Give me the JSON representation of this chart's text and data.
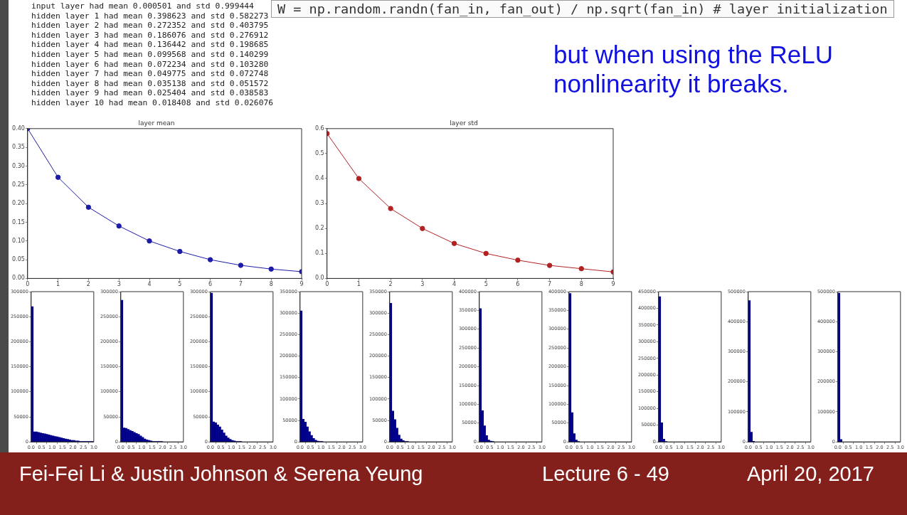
{
  "chart_data": [
    {
      "type": "other",
      "annotations": [
        "input layer had mean 0.000501 and std 0.999444",
        "hidden layer 1 had mean 0.398623 and std 0.582273",
        "hidden layer 2 had mean 0.272352 and std 0.403795",
        "hidden layer 3 had mean 0.186076 and std 0.276912",
        "hidden layer 4 had mean 0.136442 and std 0.198685",
        "hidden layer 5 had mean 0.099568 and std 0.140299",
        "hidden layer 6 had mean 0.072234 and std 0.103280",
        "hidden layer 7 had mean 0.049775 and std 0.072748",
        "hidden layer 8 had mean 0.035138 and std 0.051572",
        "hidden layer 9 had mean 0.025404 and std 0.038583",
        "hidden layer 10 had mean 0.018408 and std 0.026076",
        "W = np.random.randn(fan_in, fan_out) / np.sqrt(fan_in) # layer initialization",
        "but when using the ReLU nonlinearity it breaks.",
        "Fei-Fei Li & Justin Johnson & Serena Yeung",
        "Lecture 6 - 49",
        "April 20, 2017"
      ]
    },
    {
      "type": "line",
      "title": "layer mean",
      "x": [
        0,
        1,
        2,
        3,
        4,
        5,
        6,
        7,
        8,
        9
      ],
      "values": [
        0.4,
        0.27,
        0.19,
        0.14,
        0.1,
        0.072,
        0.05,
        0.035,
        0.025,
        0.018
      ],
      "color": "#1c1ca8",
      "marker": "circle",
      "xlim": [
        0,
        9
      ],
      "xticks": [
        0,
        1,
        2,
        3,
        4,
        5,
        6,
        7,
        8,
        9
      ],
      "ylim": [
        0,
        0.4
      ],
      "yticks": [
        {
          "value": 0,
          "label": "0.00"
        },
        {
          "value": 0.05,
          "label": "0.05"
        },
        {
          "value": 0.1,
          "label": "0.10"
        },
        {
          "value": 0.15,
          "label": "0.15"
        },
        {
          "value": 0.2,
          "label": "0.20"
        },
        {
          "value": 0.25,
          "label": "0.25"
        },
        {
          "value": 0.3,
          "label": "0.30"
        },
        {
          "value": 0.35,
          "label": "0.35"
        },
        {
          "value": 0.4,
          "label": "0.40"
        }
      ]
    },
    {
      "type": "line",
      "title": "layer std",
      "x": [
        0,
        1,
        2,
        3,
        4,
        5,
        6,
        7,
        8,
        9
      ],
      "values": [
        0.58,
        0.4,
        0.28,
        0.2,
        0.14,
        0.1,
        0.073,
        0.052,
        0.039,
        0.026
      ],
      "color": "#b22222",
      "marker": "circle",
      "xlim": [
        0,
        9
      ],
      "xticks": [
        0,
        1,
        2,
        3,
        4,
        5,
        6,
        7,
        8,
        9
      ],
      "ylim": [
        0,
        0.6
      ],
      "yticks": [
        {
          "value": 0,
          "label": "0.0"
        },
        {
          "value": 0.1,
          "label": "0.1"
        },
        {
          "value": 0.2,
          "label": "0.2"
        },
        {
          "value": 0.3,
          "label": "0.3"
        },
        {
          "value": 0.4,
          "label": "0.4"
        },
        {
          "value": 0.5,
          "label": "0.5"
        },
        {
          "value": 0.6,
          "label": "0.6"
        }
      ]
    },
    {
      "type": "histogram",
      "bins": [
        0,
        0.1,
        0.2,
        0.3,
        0.4,
        0.5,
        0.6,
        0.7,
        0.8,
        0.9,
        1.0,
        1.1,
        1.2,
        1.3,
        1.4,
        1.5,
        1.6,
        1.7,
        1.8,
        1.9,
        2.0,
        2.1,
        2.2,
        2.3,
        2.4,
        2.5,
        2.6,
        2.7,
        2.8,
        2.9,
        3.0
      ],
      "values": [
        270000,
        20000,
        20000,
        19000,
        18000,
        17000,
        16000,
        15000,
        14000,
        13000,
        12000,
        11000,
        10000,
        9000,
        8000,
        7000,
        6000,
        5000,
        4000,
        3000,
        3000,
        2000,
        2000,
        1000,
        1000,
        1000,
        1000,
        1000,
        1000,
        1000
      ],
      "color": "#00008b",
      "xlim": [
        0,
        3
      ],
      "xticks": [
        {
          "value": 0,
          "label": "0.0"
        },
        {
          "value": 0.5,
          "label": "0.5"
        },
        {
          "value": 1,
          "label": "1.0"
        },
        {
          "value": 1.5,
          "label": "1.5"
        },
        {
          "value": 2,
          "label": "2.0"
        },
        {
          "value": 2.5,
          "label": "2.5"
        },
        {
          "value": 3,
          "label": "3.0"
        }
      ],
      "ylim": [
        0,
        300000
      ],
      "yticks": [
        0,
        50000,
        100000,
        150000,
        200000,
        250000,
        300000
      ]
    },
    {
      "type": "histogram",
      "bins": [
        0,
        0.1,
        0.2,
        0.3,
        0.4,
        0.5,
        0.6,
        0.7,
        0.8,
        0.9,
        1.0,
        1.1,
        1.2,
        1.3,
        1.4,
        1.5,
        1.6,
        1.7,
        1.8,
        1.9,
        2.0
      ],
      "values": [
        283000,
        28000,
        27000,
        25000,
        23000,
        21000,
        19000,
        17000,
        15000,
        12000,
        9000,
        6000,
        4000,
        3000,
        2000,
        1000,
        1000,
        1000,
        1000,
        1000
      ],
      "color": "#00008b",
      "xlim": [
        0,
        3
      ],
      "xticks": [
        {
          "value": 0,
          "label": "0.0"
        },
        {
          "value": 0.5,
          "label": "0.5"
        },
        {
          "value": 1,
          "label": "1.0"
        },
        {
          "value": 1.5,
          "label": "1.5"
        },
        {
          "value": 2,
          "label": "2.0"
        },
        {
          "value": 2.5,
          "label": "2.5"
        },
        {
          "value": 3,
          "label": "3.0"
        }
      ],
      "ylim": [
        0,
        300000
      ],
      "yticks": [
        0,
        50000,
        100000,
        150000,
        200000,
        250000,
        300000
      ]
    },
    {
      "type": "histogram",
      "bins": [
        0,
        0.1,
        0.2,
        0.3,
        0.4,
        0.5,
        0.6,
        0.7,
        0.8,
        0.9,
        1.0,
        1.1,
        1.2,
        1.3,
        1.4,
        1.5
      ],
      "values": [
        297000,
        40000,
        38000,
        34000,
        30000,
        24000,
        18000,
        12000,
        8000,
        5000,
        3000,
        2000,
        1000,
        1000,
        1000
      ],
      "color": "#00008b",
      "xlim": [
        0,
        3
      ],
      "xticks": [
        {
          "value": 0,
          "label": "0.0"
        },
        {
          "value": 0.5,
          "label": "0.5"
        },
        {
          "value": 1,
          "label": "1.0"
        },
        {
          "value": 1.5,
          "label": "1.5"
        },
        {
          "value": 2,
          "label": "2.0"
        },
        {
          "value": 2.5,
          "label": "2.5"
        },
        {
          "value": 3,
          "label": "3.0"
        }
      ],
      "ylim": [
        0,
        300000
      ],
      "yticks": [
        0,
        50000,
        100000,
        150000,
        200000,
        250000,
        300000
      ]
    },
    {
      "type": "histogram",
      "bins": [
        0,
        0.1,
        0.2,
        0.3,
        0.4,
        0.5,
        0.6,
        0.7,
        0.8,
        0.9,
        1.0,
        1.1
      ],
      "values": [
        305000,
        53000,
        46000,
        35000,
        24000,
        15000,
        8000,
        4000,
        2000,
        1000,
        1000
      ],
      "color": "#00008b",
      "xlim": [
        0,
        3
      ],
      "xticks": [
        {
          "value": 0,
          "label": "0.0"
        },
        {
          "value": 0.5,
          "label": "0.5"
        },
        {
          "value": 1,
          "label": "1.0"
        },
        {
          "value": 1.5,
          "label": "1.5"
        },
        {
          "value": 2,
          "label": "2.0"
        },
        {
          "value": 2.5,
          "label": "2.5"
        },
        {
          "value": 3,
          "label": "3.0"
        }
      ],
      "ylim": [
        0,
        350000
      ],
      "yticks": [
        0,
        50000,
        100000,
        150000,
        200000,
        250000,
        300000,
        350000
      ]
    },
    {
      "type": "histogram",
      "bins": [
        0,
        0.1,
        0.2,
        0.3,
        0.4,
        0.5,
        0.6,
        0.7,
        0.8,
        0.9
      ],
      "values": [
        323000,
        72000,
        52000,
        32000,
        16000,
        7000,
        3000,
        1000,
        1000
      ],
      "color": "#00008b",
      "xlim": [
        0,
        3
      ],
      "xticks": [
        {
          "value": 0,
          "label": "0.0"
        },
        {
          "value": 0.5,
          "label": "0.5"
        },
        {
          "value": 1,
          "label": "1.0"
        },
        {
          "value": 1.5,
          "label": "1.5"
        },
        {
          "value": 2,
          "label": "2.0"
        },
        {
          "value": 2.5,
          "label": "2.5"
        },
        {
          "value": 3,
          "label": "3.0"
        }
      ],
      "ylim": [
        0,
        350000
      ],
      "yticks": [
        0,
        50000,
        100000,
        150000,
        200000,
        250000,
        300000,
        350000
      ]
    },
    {
      "type": "histogram",
      "bins": [
        0,
        0.1,
        0.2,
        0.3,
        0.4,
        0.5,
        0.6,
        0.7
      ],
      "values": [
        355000,
        83000,
        43000,
        17000,
        5000,
        2000,
        1000
      ],
      "color": "#00008b",
      "xlim": [
        0,
        3
      ],
      "xticks": [
        {
          "value": 0,
          "label": "0.0"
        },
        {
          "value": 0.5,
          "label": "0.5"
        },
        {
          "value": 1,
          "label": "1.0"
        },
        {
          "value": 1.5,
          "label": "1.5"
        },
        {
          "value": 2,
          "label": "2.0"
        },
        {
          "value": 2.5,
          "label": "2.5"
        },
        {
          "value": 3,
          "label": "3.0"
        }
      ],
      "ylim": [
        0,
        400000
      ],
      "yticks": [
        0,
        50000,
        100000,
        150000,
        200000,
        250000,
        300000,
        350000,
        400000
      ]
    },
    {
      "type": "histogram",
      "bins": [
        0,
        0.1,
        0.2,
        0.3,
        0.4,
        0.5
      ],
      "values": [
        395000,
        78000,
        22000,
        5000,
        1000
      ],
      "color": "#00008b",
      "xlim": [
        0,
        3
      ],
      "xticks": [
        {
          "value": 0,
          "label": "0.0"
        },
        {
          "value": 0.5,
          "label": "0.5"
        },
        {
          "value": 1,
          "label": "1.0"
        },
        {
          "value": 1.5,
          "label": "1.5"
        },
        {
          "value": 2,
          "label": "2.0"
        },
        {
          "value": 2.5,
          "label": "2.5"
        },
        {
          "value": 3,
          "label": "3.0"
        }
      ],
      "ylim": [
        0,
        400000
      ],
      "yticks": [
        0,
        50000,
        100000,
        150000,
        200000,
        250000,
        300000,
        350000,
        400000
      ]
    },
    {
      "type": "histogram",
      "bins": [
        0,
        0.1,
        0.2,
        0.3,
        0.4
      ],
      "values": [
        435000,
        57000,
        8000,
        1000
      ],
      "color": "#00008b",
      "xlim": [
        0,
        3
      ],
      "xticks": [
        {
          "value": 0,
          "label": "0.0"
        },
        {
          "value": 0.5,
          "label": "0.5"
        },
        {
          "value": 1,
          "label": "1.0"
        },
        {
          "value": 1.5,
          "label": "1.5"
        },
        {
          "value": 2,
          "label": "2.0"
        },
        {
          "value": 2.5,
          "label": "2.5"
        },
        {
          "value": 3,
          "label": "3.0"
        }
      ],
      "ylim": [
        0,
        450000
      ],
      "yticks": [
        0,
        50000,
        100000,
        150000,
        200000,
        250000,
        300000,
        350000,
        400000,
        450000
      ]
    },
    {
      "type": "histogram",
      "bins": [
        0,
        0.1,
        0.2,
        0.3
      ],
      "values": [
        470000,
        32000,
        2000
      ],
      "color": "#00008b",
      "xlim": [
        0,
        3
      ],
      "xticks": [
        {
          "value": 0,
          "label": "0.0"
        },
        {
          "value": 0.5,
          "label": "0.5"
        },
        {
          "value": 1,
          "label": "1.0"
        },
        {
          "value": 1.5,
          "label": "1.5"
        },
        {
          "value": 2,
          "label": "2.0"
        },
        {
          "value": 2.5,
          "label": "2.5"
        },
        {
          "value": 3,
          "label": "3.0"
        }
      ],
      "ylim": [
        0,
        500000
      ],
      "yticks": [
        0,
        100000,
        200000,
        300000,
        400000,
        500000
      ]
    },
    {
      "type": "histogram",
      "bins": [
        0,
        0.1,
        0.2
      ],
      "values": [
        495000,
        8000
      ],
      "color": "#00008b",
      "xlim": [
        0,
        3
      ],
      "xticks": [
        {
          "value": 0,
          "label": "0.0"
        },
        {
          "value": 0.5,
          "label": "0.5"
        },
        {
          "value": 1,
          "label": "1.0"
        },
        {
          "value": 1.5,
          "label": "1.5"
        },
        {
          "value": 2,
          "label": "2.0"
        },
        {
          "value": 2.5,
          "label": "2.5"
        },
        {
          "value": 3,
          "label": "3.0"
        }
      ],
      "ylim": [
        0,
        500000
      ],
      "yticks": [
        0,
        100000,
        200000,
        300000,
        400000,
        500000
      ]
    }
  ]
}
